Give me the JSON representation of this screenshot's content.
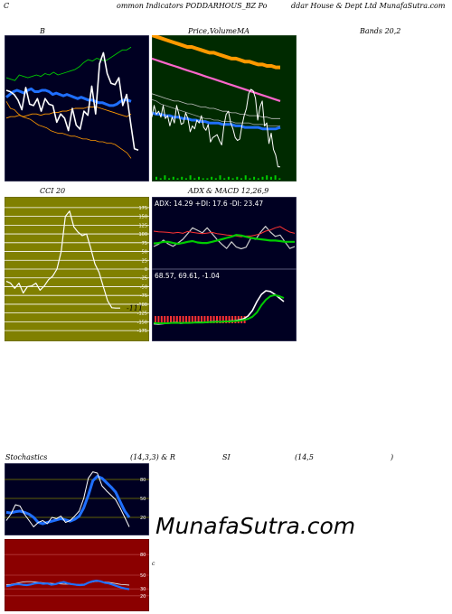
{
  "header": {
    "parts": [
      "C",
      "ommon  Indicators PODDARHOUS_BZ Po",
      "ddar House  & Dept Ltd MunafaSutra.com"
    ]
  },
  "titles": {
    "bbands_b": "B",
    "price_a": "Price,",
    "price_b": "Volume",
    "price_c": "MA",
    "bbands": "Bands 20,2",
    "cci": "CCI 20",
    "adx_macd_a": "ADX",
    "adx_macd_b": "& MACD 12,26,9",
    "stoch_a": "Stochastics",
    "stoch_b": "(14,3,3) & R",
    "stoch_c": "SI",
    "stoch_d": "(14,5",
    "stoch_e": ")"
  },
  "adx": {
    "label": "ADX: 14.29  +DI: 17.6  -DI: 23.47"
  },
  "macd": {
    "label": "68.57,  69.61,  -1.04"
  },
  "cci_extra": {
    "label": "-111"
  },
  "watermark": "MunafaSutra.com",
  "colors": {
    "navy": "#000022",
    "dark_green": "#002a00",
    "olive": "#808000",
    "maroon": "#8b0000",
    "white": "#ffffff",
    "blue": "#1f6fff",
    "green": "#00cc00",
    "orange": "#ff9900",
    "pink": "#ff66cc",
    "red": "#ff3333"
  },
  "chart_data": [
    {
      "type": "line",
      "title": "Bollinger Bands 20,2",
      "series": [
        {
          "values": [
            0.72,
            0.71,
            0.7,
            0.74,
            0.73,
            0.72,
            0.73,
            0.74,
            0.73,
            0.75,
            0.74,
            0.76,
            0.74,
            0.75,
            0.76,
            0.77,
            0.78,
            0.8,
            0.83,
            0.85,
            0.84,
            0.86,
            0.85,
            0.84,
            0.86,
            0.88,
            0.9,
            0.92,
            0.92,
            0.94
          ]
        },
        {
          "values": [
            0.43,
            0.44,
            0.44,
            0.45,
            0.44,
            0.45,
            0.46,
            0.46,
            0.45,
            0.46,
            0.46,
            0.47,
            0.47,
            0.48,
            0.48,
            0.49,
            0.5,
            0.5,
            0.5,
            0.51,
            0.51,
            0.51,
            0.5,
            0.49,
            0.48,
            0.47,
            0.46,
            0.45,
            0.44,
            0.46
          ]
        },
        {
          "values": [
            0.58,
            0.6,
            0.62,
            0.63,
            0.62,
            0.61,
            0.63,
            0.64,
            0.62,
            0.62,
            0.63,
            0.63,
            0.62,
            0.6,
            0.61,
            0.6,
            0.59,
            0.6,
            0.59,
            0.58,
            0.57,
            0.58,
            0.57,
            0.56,
            0.56,
            0.55,
            0.54,
            0.54,
            0.53,
            0.52,
            0.52,
            0.53,
            0.55,
            0.56,
            0.56,
            0.55
          ]
        },
        {
          "values": [
            0.63,
            0.62,
            0.6,
            0.56,
            0.49,
            0.65,
            0.53,
            0.52,
            0.57,
            0.48,
            0.57,
            0.53,
            0.52,
            0.4,
            0.46,
            0.43,
            0.34,
            0.5,
            0.38,
            0.35,
            0.48,
            0.45,
            0.66,
            0.46,
            0.82,
            0.9,
            0.75,
            0.68,
            0.67,
            0.72,
            0.52,
            0.6,
            0.4,
            0.21,
            0.2
          ]
        },
        {
          "values": [
            0.55,
            0.5,
            0.49,
            0.46,
            0.44,
            0.43,
            0.42,
            0.4,
            0.38,
            0.37,
            0.36,
            0.34,
            0.33,
            0.32,
            0.32,
            0.31,
            0.3,
            0.3,
            0.29,
            0.28,
            0.28,
            0.27,
            0.27,
            0.26,
            0.26,
            0.25,
            0.25,
            0.24,
            0.22,
            0.2,
            0.18,
            0.14
          ]
        }
      ]
    },
    {
      "type": "line",
      "title": "Price, Volume, MA",
      "series": [
        {
          "values": [
            1.0,
            0.99,
            0.98,
            0.97,
            0.96,
            0.95,
            0.94,
            0.93,
            0.92,
            0.92,
            0.91,
            0.9,
            0.89,
            0.88,
            0.88,
            0.87,
            0.86,
            0.85,
            0.84,
            0.84,
            0.83,
            0.82,
            0.82,
            0.81,
            0.8,
            0.8,
            0.79,
            0.79,
            0.78,
            0.78
          ]
        },
        {
          "values": [
            0.84,
            0.83,
            0.82,
            0.81,
            0.8,
            0.79,
            0.78,
            0.77,
            0.76,
            0.75,
            0.74,
            0.73,
            0.72,
            0.71,
            0.7,
            0.69,
            0.68,
            0.67,
            0.66,
            0.65,
            0.64,
            0.63,
            0.62,
            0.61,
            0.6,
            0.59,
            0.58,
            0.57,
            0.56,
            0.55
          ]
        },
        {
          "values": [
            0.6,
            0.59,
            0.58,
            0.57,
            0.56,
            0.55,
            0.55,
            0.54,
            0.53,
            0.53,
            0.52,
            0.51,
            0.51,
            0.5,
            0.5,
            0.49,
            0.48,
            0.48,
            0.47,
            0.47,
            0.46,
            0.46,
            0.45,
            0.45,
            0.45,
            0.44,
            0.44,
            0.43,
            0.43,
            0.43
          ]
        },
        {
          "values": [
            0.56,
            0.55,
            0.53,
            0.52,
            0.51,
            0.5,
            0.49,
            0.48,
            0.47,
            0.46,
            0.45,
            0.44,
            0.43,
            0.43,
            0.42,
            0.42,
            0.41,
            0.41,
            0.41,
            0.4,
            0.4,
            0.4,
            0.4,
            0.39,
            0.39,
            0.39,
            0.38,
            0.38,
            0.38,
            0.38
          ]
        },
        {
          "values": [
            0.47,
            0.46,
            0.46,
            0.45,
            0.45,
            0.44,
            0.44,
            0.43,
            0.43,
            0.42,
            0.42,
            0.41,
            0.41,
            0.4,
            0.4,
            0.4,
            0.39,
            0.39,
            0.39,
            0.38,
            0.38,
            0.37,
            0.37,
            0.37,
            0.37,
            0.36,
            0.36,
            0.36,
            0.36,
            0.37
          ]
        },
        {
          "values": [
            0.44,
            0.52,
            0.46,
            0.48,
            0.44,
            0.52,
            0.43,
            0.45,
            0.38,
            0.44,
            0.4,
            0.52,
            0.46,
            0.39,
            0.4,
            0.47,
            0.43,
            0.34,
            0.38,
            0.36,
            0.42,
            0.4,
            0.45,
            0.37,
            0.35,
            0.39,
            0.27,
            0.3,
            0.31,
            0.32,
            0.28,
            0.25,
            0.38,
            0.46,
            0.48,
            0.4,
            0.36,
            0.3,
            0.28,
            0.29,
            0.38,
            0.45,
            0.5,
            0.6,
            0.63,
            0.62,
            0.57,
            0.42,
            0.51,
            0.55,
            0.38,
            0.4,
            0.26,
            0.33,
            0.22,
            0.18,
            0.1,
            0.1
          ]
        },
        {
          "values": [
            0.02,
            0.01,
            0.03,
            0.01,
            0.02,
            0.01,
            0.02,
            0.01,
            0.03,
            0.01,
            0.02,
            0.01,
            0.01,
            0.02,
            0.01,
            0.03,
            0.01,
            0.02,
            0.01,
            0.02,
            0.01,
            0.03,
            0.01,
            0.02,
            0.01,
            0.02,
            0.03,
            0.02,
            0.03,
            0.01
          ]
        }
      ]
    },
    {
      "type": "line",
      "title": "CCI 20",
      "y": [
        -175,
        -150,
        -125,
        -100,
        -75,
        -50,
        -25,
        0,
        25,
        50,
        75,
        100,
        125,
        150,
        175
      ],
      "series": [
        {
          "values": [
            -35,
            -40,
            -55,
            -40,
            -68,
            -50,
            -48,
            -40,
            -60,
            -48,
            -30,
            -20,
            0,
            50,
            150,
            165,
            120,
            105,
            95,
            100,
            60,
            15,
            -10,
            -50,
            -90,
            -110,
            -111,
            -111
          ]
        }
      ],
      "ylim": [
        -185,
        185
      ]
    },
    {
      "type": "line",
      "title": "ADX",
      "series": [
        {
          "values": [
            14.4,
            16.0,
            18.8,
            16.2,
            14.5,
            16.8,
            19.4,
            23.3,
            27.3,
            25.6,
            23.8,
            27.3,
            23.3,
            19.4,
            16.0,
            13.0,
            17.6,
            14.0,
            12.8,
            13.9,
            20.3,
            19.4,
            24.4,
            28.3,
            24.4,
            21.4,
            22.3,
            17.6,
            13.0,
            14.3
          ]
        },
        {
          "values": [
            25.0,
            24.5,
            24.4,
            24.1,
            23.7,
            24.1,
            23.5,
            24.8,
            24.1,
            23.7,
            23.3,
            23.7,
            24.1,
            23.3,
            22.9,
            22.4,
            22.0,
            21.6,
            21.1,
            21.6,
            21.6,
            22.4,
            23.3,
            25.0,
            25.8,
            27.3,
            28.2,
            26.1,
            24.4,
            23.5
          ]
        },
        {
          "values": [
            16.5,
            16.8,
            17.6,
            17.6,
            16.8,
            16.2,
            16.8,
            17.6,
            18.1,
            17.2,
            16.8,
            16.8,
            17.6,
            18.5,
            19.4,
            20.3,
            21.2,
            22.4,
            22.0,
            21.1,
            20.3,
            19.8,
            19.4,
            19.0,
            18.5,
            18.5,
            18.1,
            17.6,
            17.6,
            17.6
          ]
        }
      ],
      "ylim": [
        0,
        40
      ]
    },
    {
      "type": "line",
      "title": "MACD 12,26,9",
      "series": [
        {
          "values": [
            -71,
            -72,
            -71,
            -70,
            -69,
            -68,
            -70,
            -69,
            -69,
            -68,
            -67,
            -68,
            -67,
            -66,
            -65,
            -66,
            -65,
            -64,
            -63,
            -61,
            -58,
            -50,
            -35,
            -10,
            10,
            20,
            18,
            10,
            0,
            -10
          ]
        },
        {
          "values": [
            -69,
            -70,
            -70,
            -70,
            -69,
            -69,
            -69,
            -69,
            -69,
            -68,
            -68,
            -68,
            -67,
            -67,
            -66,
            -66,
            -65,
            -65,
            -64,
            -63,
            -61,
            -58,
            -52,
            -40,
            -20,
            -5,
            5,
            8,
            5,
            0
          ]
        },
        {
          "values": [
            -9,
            -8,
            -9,
            -8,
            -7,
            -8,
            -7,
            -8,
            -9,
            -8,
            -7,
            -8,
            -9,
            -8,
            -7,
            -8,
            -9,
            -8,
            -7,
            -8,
            -9,
            -8,
            -7,
            -8,
            -9,
            -8,
            -7,
            -8,
            -9,
            -8
          ]
        }
      ],
      "ylim": [
        -110,
        45
      ]
    },
    {
      "type": "line",
      "title": "Stochastics (14,3,3)",
      "y": [
        20,
        50,
        80
      ],
      "series": [
        {
          "values": [
            15,
            25,
            40,
            38,
            25,
            15,
            5,
            12,
            15,
            10,
            20,
            18,
            22,
            12,
            15,
            22,
            30,
            50,
            82,
            92,
            90,
            70,
            62,
            55,
            48,
            35,
            20,
            5
          ]
        },
        {
          "values": [
            28,
            27,
            29,
            30,
            28,
            25,
            20,
            12,
            10,
            12,
            14,
            16,
            18,
            16,
            14,
            17,
            22,
            35,
            55,
            78,
            85,
            82,
            75,
            68,
            60,
            45,
            30,
            20
          ]
        }
      ],
      "ylim": [
        0,
        100
      ]
    },
    {
      "type": "line",
      "title": "RSI (14,5)",
      "y": [
        20,
        30,
        50,
        80
      ],
      "series": [
        {
          "values": [
            34.0,
            35.0,
            36.5,
            37.0,
            36.0,
            35.5,
            36.5,
            38.0,
            38.5,
            37.5,
            38.0,
            36.0,
            37.0,
            39.0,
            40.0,
            38.0,
            37.0,
            36.0,
            35.5,
            36.0,
            39.0,
            41.0,
            42.0,
            41.0,
            39.0,
            38.0,
            36.0,
            34.0,
            32.0,
            30.5,
            29.5
          ]
        },
        {
          "values": [
            36.0,
            36.5,
            37.5,
            39.0,
            40.0,
            40.5,
            40.5,
            40.0,
            39.5,
            39.0,
            38.5,
            38.0,
            37.5,
            37.5,
            37.0,
            37.0,
            36.5,
            36.5,
            36.5,
            37.0,
            38.5,
            40.0,
            41.0,
            40.5,
            40.0,
            39.5,
            38.5,
            37.5,
            36.5,
            36.0,
            35.5
          ]
        }
      ],
      "ylim": [
        0,
        100
      ]
    }
  ]
}
